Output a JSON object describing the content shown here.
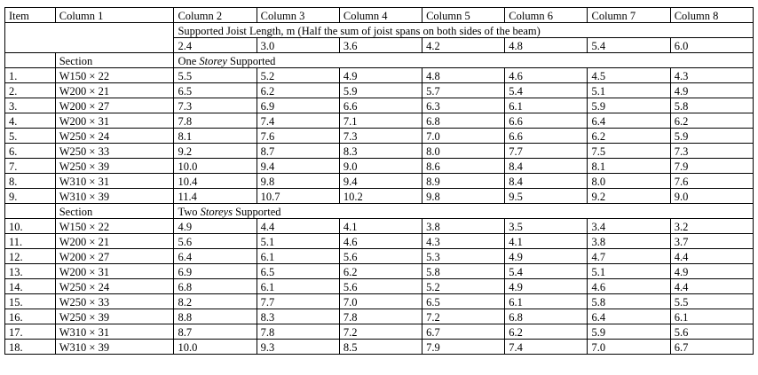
{
  "table": {
    "headers": [
      "Item",
      "Column 1",
      "Column 2",
      "Column 3",
      "Column 4",
      "Column 5",
      "Column 6",
      "Column 7",
      "Column 8"
    ],
    "supported_length_title": "Supported Joist Length, m (Half the sum of joist spans on both sides of the beam)",
    "lengths": [
      "2.4",
      "3.0",
      "3.6",
      "4.2",
      "4.8",
      "5.4",
      "6.0"
    ],
    "groups": [
      {
        "section_label": "Section",
        "heading_prefix": "One ",
        "heading_em": "Storey",
        "heading_suffix": " Supported",
        "rows": [
          {
            "item": "1.",
            "section": "W150 × 22",
            "values": [
              "5.5",
              "5.2",
              "4.9",
              "4.8",
              "4.6",
              "4.5",
              "4.3"
            ]
          },
          {
            "item": "2.",
            "section": "W200 × 21",
            "values": [
              "6.5",
              "6.2",
              "5.9",
              "5.7",
              "5.4",
              "5.1",
              "4.9"
            ]
          },
          {
            "item": "3.",
            "section": "W200 × 27",
            "values": [
              "7.3",
              "6.9",
              "6.6",
              "6.3",
              "6.1",
              "5.9",
              "5.8"
            ]
          },
          {
            "item": "4.",
            "section": "W200 × 31",
            "values": [
              "7.8",
              "7.4",
              "7.1",
              "6.8",
              "6.6",
              "6.4",
              "6.2"
            ]
          },
          {
            "item": "5.",
            "section": "W250 × 24",
            "values": [
              "8.1",
              "7.6",
              "7.3",
              "7.0",
              "6.6",
              "6.2",
              "5.9"
            ]
          },
          {
            "item": "6.",
            "section": "W250 × 33",
            "values": [
              "9.2",
              "8.7",
              "8.3",
              "8.0",
              "7.7",
              "7.5",
              "7.3"
            ]
          },
          {
            "item": "7.",
            "section": "W250 × 39",
            "values": [
              "10.0",
              "9.4",
              "9.0",
              "8.6",
              "8.4",
              "8.1",
              "7.9"
            ]
          },
          {
            "item": "8.",
            "section": "W310 × 31",
            "values": [
              "10.4",
              "9.8",
              "9.4",
              "8.9",
              "8.4",
              "8.0",
              "7.6"
            ]
          },
          {
            "item": "9.",
            "section": "W310 × 39",
            "values": [
              "11.4",
              "10.7",
              "10.2",
              "9.8",
              "9.5",
              "9.2",
              "9.0"
            ]
          }
        ]
      },
      {
        "section_label": "Section",
        "heading_prefix": "Two ",
        "heading_em": "Storeys",
        "heading_suffix": " Supported",
        "rows": [
          {
            "item": "10.",
            "section": "W150 × 22",
            "values": [
              "4.9",
              "4.4",
              "4.1",
              "3.8",
              "3.5",
              "3.4",
              "3.2"
            ]
          },
          {
            "item": "11.",
            "section": "W200 × 21",
            "values": [
              "5.6",
              "5.1",
              "4.6",
              "4.3",
              "4.1",
              "3.8",
              "3.7"
            ]
          },
          {
            "item": "12.",
            "section": "W200 × 27",
            "values": [
              "6.4",
              "6.1",
              "5.6",
              "5.3",
              "4.9",
              "4.7",
              "4.4"
            ]
          },
          {
            "item": "13.",
            "section": "W200 × 31",
            "values": [
              "6.9",
              "6.5",
              "6.2",
              "5.8",
              "5.4",
              "5.1",
              "4.9"
            ]
          },
          {
            "item": "14.",
            "section": "W250 × 24",
            "values": [
              "6.8",
              "6.1",
              "5.6",
              "5.2",
              "4.9",
              "4.6",
              "4.4"
            ]
          },
          {
            "item": "15.",
            "section": "W250 × 33",
            "values": [
              "8.2",
              "7.7",
              "7.0",
              "6.5",
              "6.1",
              "5.8",
              "5.5"
            ]
          },
          {
            "item": "16.",
            "section": "W250 × 39",
            "values": [
              "8.8",
              "8.3",
              "7.8",
              "7.2",
              "6.8",
              "6.4",
              "6.1"
            ]
          },
          {
            "item": "17.",
            "section": "W310 × 31",
            "values": [
              "8.7",
              "7.8",
              "7.2",
              "6.7",
              "6.2",
              "5.9",
              "5.6"
            ]
          },
          {
            "item": "18.",
            "section": "W310 × 39",
            "values": [
              "10.0",
              "9.3",
              "8.5",
              "7.9",
              "7.4",
              "7.0",
              "6.7"
            ]
          }
        ]
      }
    ]
  }
}
